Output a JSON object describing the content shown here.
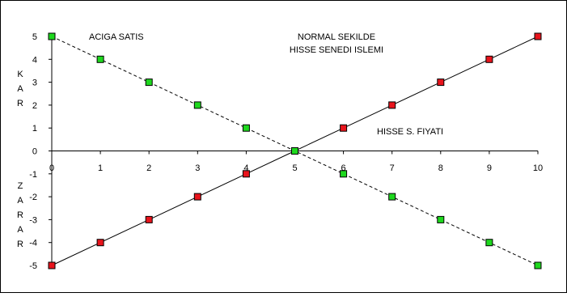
{
  "chart_data": {
    "type": "line",
    "x": [
      0,
      1,
      2,
      3,
      4,
      5,
      6,
      7,
      8,
      9,
      10
    ],
    "series": [
      {
        "values": [
          -5,
          -4,
          -3,
          -2,
          -1,
          0,
          1,
          2,
          3,
          4,
          5
        ],
        "line_style": "solid",
        "marker": "square",
        "marker_color": "#e8141c"
      },
      {
        "values": [
          5,
          4,
          3,
          2,
          1,
          0,
          -1,
          -2,
          -3,
          -4,
          -5
        ],
        "line_style": "dashed",
        "marker": "square",
        "marker_color": "#1ed81e"
      }
    ],
    "xlim": [
      0,
      10
    ],
    "ylim": [
      -5,
      5
    ],
    "x_ticks": [
      "0",
      "1",
      "2",
      "3",
      "4",
      "5",
      "6",
      "7",
      "8",
      "9",
      "10"
    ],
    "y_ticks": [
      "5",
      "4",
      "3",
      "2",
      "1",
      "0",
      "-1",
      "-2",
      "-3",
      "-4",
      "-5"
    ],
    "ylabel_positive": [
      "K",
      "A",
      "R"
    ],
    "ylabel_negative": [
      "Z",
      "A",
      "R",
      "A",
      "R"
    ],
    "annotations": {
      "short_sale": "ACIGA SATIS",
      "normal_line1": "NORMAL SEKILDE",
      "normal_line2": "HISSE SENEDI ISLEMI",
      "xlabel": "HISSE S. FIYATI"
    },
    "grid": false,
    "legend": "none"
  }
}
